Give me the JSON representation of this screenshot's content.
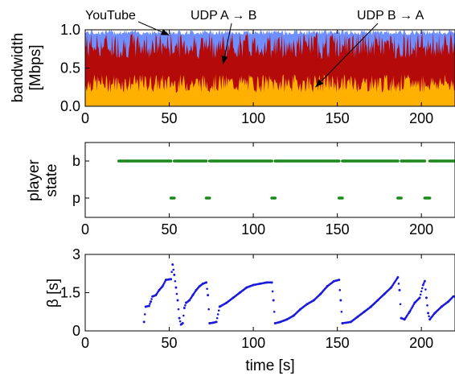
{
  "chart_data": [
    {
      "type": "area",
      "ylabel_lines": [
        "bandwidth",
        "[Mbps]"
      ],
      "xlim": [
        0,
        220
      ],
      "ylim": [
        0,
        1.0
      ],
      "x_ticks": [
        "0",
        "50",
        "100",
        "150",
        "200"
      ],
      "y_ticks": [
        "0.0",
        "0.5",
        "1.0"
      ],
      "series": [
        {
          "name": "UDP B → A",
          "color": "#ffb000",
          "approx_level": 0.28,
          "approx_range": [
            0.18,
            0.42
          ]
        },
        {
          "name": "UDP A → B",
          "color": "#b50a0a",
          "approx_level": 0.8,
          "approx_range": [
            0.62,
            0.97
          ]
        },
        {
          "name": "YouTube",
          "color": "#6f8fff",
          "approx_level": 0.97,
          "approx_range": [
            0.93,
            1.0
          ]
        }
      ],
      "annotations": [
        {
          "text": "YouTube",
          "points_to": [
            50,
            0.93
          ]
        },
        {
          "text": "UDP A → B",
          "points_to": [
            82,
            0.55
          ]
        },
        {
          "text": "UDP B → A",
          "points_to": [
            137,
            0.25
          ]
        }
      ]
    },
    {
      "type": "scatter",
      "ylabel_lines": [
        "player",
        "state"
      ],
      "xlim": [
        0,
        220
      ],
      "y_categories": [
        "p",
        "b"
      ],
      "x_ticks": [
        "0",
        "50",
        "100",
        "150",
        "200"
      ],
      "color": "#1a8a1a",
      "b_segments": [
        [
          20,
          51
        ],
        [
          53,
          72
        ],
        [
          74,
          111
        ],
        [
          113,
          151
        ],
        [
          153,
          186
        ],
        [
          188,
          202
        ],
        [
          205,
          220
        ]
      ],
      "p_segments": [
        [
          51,
          53
        ],
        [
          72,
          74
        ],
        [
          111,
          113
        ],
        [
          151,
          153
        ],
        [
          186,
          188
        ],
        [
          202,
          205
        ]
      ]
    },
    {
      "type": "scatter",
      "ylabel": "β [s]",
      "xlabel": "time [s]",
      "xlim": [
        0,
        220
      ],
      "ylim": [
        0,
        3
      ],
      "x_ticks": [
        "0",
        "50",
        "100",
        "150",
        "200"
      ],
      "y_ticks": [
        "0",
        "1.5",
        "3"
      ],
      "color": "#1a1adc",
      "points": [
        [
          35,
          0.35
        ],
        [
          36,
          0.95
        ],
        [
          38,
          0.98
        ],
        [
          39,
          1.15
        ],
        [
          40,
          1.35
        ],
        [
          42,
          1.4
        ],
        [
          44,
          1.6
        ],
        [
          46,
          1.75
        ],
        [
          48,
          2.0
        ],
        [
          50,
          2.02
        ],
        [
          51,
          2.03
        ],
        [
          52,
          2.6
        ],
        [
          53,
          2.2
        ],
        [
          54,
          1.7
        ],
        [
          55,
          1.2
        ],
        [
          56,
          0.5
        ],
        [
          57,
          0.25
        ],
        [
          58,
          0.3
        ],
        [
          59,
          0.9
        ],
        [
          60,
          1.1
        ],
        [
          62,
          1.2
        ],
        [
          64,
          1.4
        ],
        [
          66,
          1.6
        ],
        [
          68,
          1.75
        ],
        [
          70,
          1.85
        ],
        [
          72,
          1.9
        ],
        [
          73,
          1.4
        ],
        [
          74,
          0.3
        ],
        [
          76,
          0.32
        ],
        [
          78,
          0.35
        ],
        [
          80,
          0.95
        ],
        [
          84,
          1.1
        ],
        [
          88,
          1.3
        ],
        [
          92,
          1.5
        ],
        [
          96,
          1.7
        ],
        [
          100,
          1.8
        ],
        [
          104,
          1.85
        ],
        [
          108,
          1.9
        ],
        [
          111,
          1.9
        ],
        [
          112,
          1.2
        ],
        [
          113,
          0.3
        ],
        [
          116,
          0.35
        ],
        [
          120,
          0.45
        ],
        [
          124,
          0.6
        ],
        [
          128,
          0.85
        ],
        [
          132,
          1.05
        ],
        [
          136,
          1.2
        ],
        [
          140,
          1.45
        ],
        [
          144,
          1.75
        ],
        [
          148,
          1.95
        ],
        [
          151,
          2.0
        ],
        [
          152,
          1.2
        ],
        [
          153,
          0.3
        ],
        [
          158,
          0.35
        ],
        [
          162,
          0.55
        ],
        [
          166,
          0.75
        ],
        [
          170,
          0.95
        ],
        [
          174,
          1.2
        ],
        [
          178,
          1.45
        ],
        [
          182,
          1.7
        ],
        [
          186,
          2.1
        ],
        [
          187,
          1.6
        ],
        [
          188,
          0.5
        ],
        [
          190,
          0.45
        ],
        [
          193,
          0.75
        ],
        [
          196,
          1.1
        ],
        [
          199,
          1.3
        ],
        [
          201,
          1.8
        ],
        [
          202,
          1.95
        ],
        [
          203,
          1.3
        ],
        [
          204,
          0.7
        ],
        [
          205,
          0.45
        ],
        [
          208,
          0.7
        ],
        [
          212,
          0.95
        ],
        [
          216,
          1.15
        ],
        [
          219,
          1.35
        ],
        [
          220,
          1.35
        ]
      ]
    }
  ]
}
